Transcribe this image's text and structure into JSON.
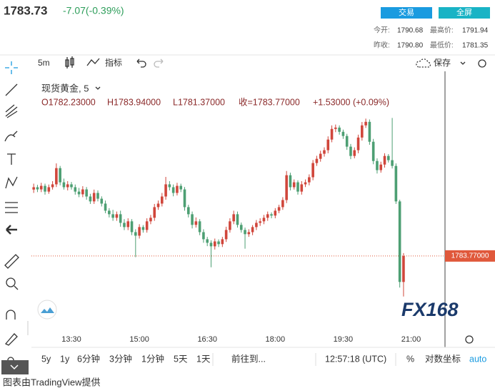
{
  "header": {
    "price": "1783.73",
    "change": "-7.07(-0.39%)",
    "buttons": [
      "交易",
      "全屏"
    ],
    "stats": [
      [
        "今开:",
        "1790.68",
        "最高价:",
        "1791.94"
      ],
      [
        "昨收:",
        "1790.80",
        "最低价:",
        "1781.35"
      ]
    ]
  },
  "toolbar": {
    "interval": "5m",
    "indicators": "指标",
    "save": "保存"
  },
  "chart_data": {
    "type": "candlestick",
    "title": "现货黄金, 5",
    "legend": [
      "O1782.23000",
      "H1783.94000",
      "L1781.37000",
      "收=1783.77000",
      "+1.53000 (+0.09%)"
    ],
    "up_color": "#d0463b",
    "down_color": "#4d9f73",
    "x": [
      "12:40",
      "12:45",
      "12:50",
      "12:55",
      "13:00",
      "13:05",
      "13:10",
      "13:15",
      "13:20",
      "13:25",
      "13:30",
      "13:35",
      "13:40",
      "13:45",
      "13:50",
      "13:55",
      "14:00",
      "14:05",
      "14:10",
      "14:15",
      "14:20",
      "14:25",
      "14:30",
      "14:35",
      "14:40",
      "14:45",
      "14:50",
      "14:55",
      "15:00",
      "15:05",
      "15:10",
      "15:15",
      "15:20",
      "15:25",
      "15:30",
      "15:35",
      "15:40",
      "15:45",
      "15:50",
      "15:55",
      "16:00",
      "16:05",
      "16:10",
      "16:15",
      "16:20",
      "16:25",
      "16:30",
      "16:35",
      "16:40",
      "16:45",
      "16:50",
      "16:55",
      "17:00",
      "17:05",
      "17:10",
      "17:15",
      "17:20",
      "17:25",
      "17:30",
      "17:35",
      "17:40",
      "17:45",
      "17:50",
      "17:55",
      "18:00",
      "18:05",
      "18:10",
      "18:15",
      "18:20",
      "18:25",
      "18:30",
      "18:35",
      "18:40",
      "18:45",
      "18:50",
      "18:55",
      "19:00",
      "19:05",
      "19:10",
      "19:15",
      "19:20",
      "19:25",
      "19:30",
      "19:35",
      "19:40",
      "19:45",
      "19:50",
      "19:55",
      "20:00",
      "20:05",
      "20:10",
      "20:15",
      "20:20",
      "20:25",
      "20:30",
      "20:35",
      "20:40",
      "20:45",
      "20:50"
    ],
    "open": [
      1787.7,
      1787.84,
      1787.71,
      1787.92,
      1787.58,
      1787.84,
      1788.01,
      1788.97,
      1788.13,
      1787.84,
      1788.01,
      1787.84,
      1787.58,
      1787.42,
      1787.71,
      1787.29,
      1787.0,
      1787.5,
      1787.16,
      1786.87,
      1786.45,
      1786.24,
      1786.03,
      1786.24,
      1785.73,
      1785.48,
      1785.82,
      1785.18,
      1784.97,
      1785.48,
      1785.31,
      1785.82,
      1786.03,
      1786.66,
      1786.87,
      1787.29,
      1788.01,
      1787.84,
      1787.5,
      1787.92,
      1787.71,
      1786.66,
      1786.24,
      1785.61,
      1785.82,
      1785.18,
      1784.76,
      1784.55,
      1784.34,
      1784.63,
      1784.47,
      1784.76,
      1785.31,
      1785.82,
      1786.24,
      1785.61,
      1785.31,
      1785.06,
      1785.18,
      1785.48,
      1785.73,
      1785.82,
      1786.03,
      1786.24,
      1786.16,
      1786.45,
      1786.66,
      1787.08,
      1788.55,
      1787.84,
      1788.13,
      1787.58,
      1788.01,
      1788.13,
      1788.43,
      1789.27,
      1789.52,
      1789.82,
      1790.03,
      1790.66,
      1791.29,
      1791.37,
      1791.12,
      1790.87,
      1790.24,
      1789.69,
      1790.03,
      1790.78,
      1791.5,
      1791.71,
      1790.53,
      1789.39,
      1788.85,
      1789.18,
      1789.69,
      1789.44,
      1789.1,
      1787.0,
      1782.23
    ],
    "high": [
      1788.05,
      1787.98,
      1788.1,
      1788.05,
      1788.0,
      1788.2,
      1789.25,
      1789.1,
      1788.35,
      1788.2,
      1788.15,
      1788.0,
      1787.8,
      1787.9,
      1787.85,
      1787.45,
      1787.7,
      1787.65,
      1787.3,
      1787.05,
      1786.6,
      1786.5,
      1786.4,
      1786.45,
      1785.95,
      1786.0,
      1785.95,
      1785.35,
      1785.65,
      1785.6,
      1786.0,
      1786.2,
      1786.85,
      1787.05,
      1787.5,
      1788.45,
      1788.2,
      1788.0,
      1788.1,
      1788.05,
      1787.85,
      1786.8,
      1786.4,
      1786.05,
      1785.95,
      1785.35,
      1784.9,
      1784.7,
      1784.8,
      1784.75,
      1784.9,
      1785.5,
      1786.0,
      1786.45,
      1786.4,
      1785.75,
      1785.45,
      1785.35,
      1785.6,
      1785.9,
      1786.0,
      1786.2,
      1786.4,
      1786.35,
      1786.6,
      1786.8,
      1787.25,
      1788.8,
      1788.7,
      1788.3,
      1788.25,
      1788.2,
      1788.3,
      1788.6,
      1789.45,
      1789.7,
      1790.0,
      1790.2,
      1790.85,
      1791.5,
      1791.55,
      1791.5,
      1791.25,
      1791.0,
      1790.4,
      1790.2,
      1790.95,
      1791.7,
      1791.9,
      1791.85,
      1790.7,
      1789.55,
      1789.35,
      1789.85,
      1789.8,
      1791.94,
      1789.25,
      1787.1,
      1783.94
    ],
    "low": [
      1787.5,
      1787.55,
      1787.55,
      1787.4,
      1787.45,
      1787.7,
      1787.85,
      1787.95,
      1787.7,
      1787.65,
      1787.7,
      1787.4,
      1787.25,
      1787.25,
      1787.1,
      1786.85,
      1786.85,
      1787.0,
      1786.7,
      1786.3,
      1786.05,
      1785.85,
      1785.85,
      1785.5,
      1785.3,
      1785.3,
      1785.0,
      1783.7,
      1784.8,
      1785.15,
      1785.15,
      1785.65,
      1785.85,
      1786.5,
      1786.7,
      1787.1,
      1787.65,
      1787.3,
      1787.35,
      1787.55,
      1786.45,
      1786.05,
      1785.4,
      1785.45,
      1785.0,
      1784.55,
      1784.35,
      1783.1,
      1784.15,
      1784.3,
      1784.3,
      1784.6,
      1785.15,
      1785.65,
      1785.45,
      1785.15,
      1784.2,
      1784.9,
      1785.0,
      1785.3,
      1785.55,
      1785.65,
      1785.85,
      1786.0,
      1786.0,
      1786.3,
      1786.5,
      1786.9,
      1787.65,
      1787.7,
      1787.4,
      1787.4,
      1787.85,
      1787.95,
      1788.25,
      1789.1,
      1789.35,
      1789.65,
      1789.85,
      1790.5,
      1791.1,
      1790.95,
      1790.7,
      1790.05,
      1789.5,
      1789.55,
      1789.85,
      1790.6,
      1791.35,
      1790.35,
      1789.2,
      1788.65,
      1788.7,
      1789.0,
      1789.3,
      1788.95,
      1786.85,
      1781.9,
      1781.37
    ],
    "close": [
      1787.84,
      1787.71,
      1787.92,
      1787.58,
      1787.84,
      1788.01,
      1788.97,
      1788.13,
      1787.84,
      1788.01,
      1787.84,
      1787.58,
      1787.42,
      1787.71,
      1787.29,
      1787.0,
      1787.5,
      1787.16,
      1786.87,
      1786.45,
      1786.24,
      1786.03,
      1786.24,
      1785.73,
      1785.48,
      1785.82,
      1785.18,
      1784.97,
      1785.48,
      1785.31,
      1785.82,
      1786.03,
      1786.66,
      1786.87,
      1787.29,
      1788.01,
      1787.84,
      1787.5,
      1787.92,
      1787.71,
      1786.66,
      1786.24,
      1785.61,
      1785.82,
      1785.18,
      1784.76,
      1784.55,
      1784.34,
      1784.63,
      1784.47,
      1784.76,
      1785.31,
      1785.82,
      1786.24,
      1785.61,
      1785.31,
      1785.06,
      1785.18,
      1785.48,
      1785.73,
      1785.82,
      1786.03,
      1786.24,
      1786.16,
      1786.45,
      1786.66,
      1787.08,
      1788.55,
      1787.84,
      1788.13,
      1787.58,
      1788.01,
      1788.13,
      1788.43,
      1789.27,
      1789.52,
      1789.82,
      1790.03,
      1790.66,
      1791.29,
      1791.37,
      1791.12,
      1790.87,
      1790.24,
      1789.69,
      1790.03,
      1790.78,
      1791.5,
      1791.71,
      1790.53,
      1789.39,
      1788.85,
      1789.18,
      1789.69,
      1789.44,
      1789.1,
      1787.0,
      1782.23,
      1783.77
    ],
    "xlim": [
      "12:37",
      "21:44"
    ],
    "xticks": [
      "13:30",
      "15:00",
      "16:30",
      "18:00",
      "19:30",
      "21:00"
    ],
    "ylim": [
      1779.5,
      1794.7
    ],
    "last_price": {
      "value": 1783.77,
      "label": "1783.77000"
    },
    "last_price_color": "#e0583b",
    "watermark": "FX168"
  },
  "bottom_bar": [
    "5y",
    "1y",
    "6分钟",
    "3分钟",
    "1分钟",
    "5天",
    "1天",
    "前往到...",
    "12:57:18 (UTC)",
    "%",
    "对数坐标",
    "auto"
  ],
  "footer": "图表由TradingView提供"
}
